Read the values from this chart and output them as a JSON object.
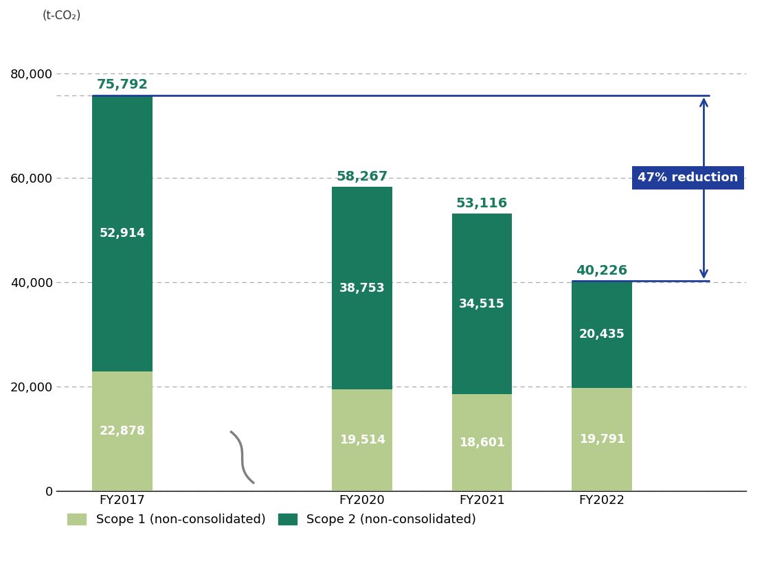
{
  "categories": [
    "FY2017",
    "FY2020",
    "FY2021",
    "FY2022"
  ],
  "scope1": [
    22878,
    19514,
    18601,
    19791
  ],
  "scope2": [
    52914,
    38753,
    34515,
    20435
  ],
  "totals": [
    75792,
    58267,
    53116,
    40226
  ],
  "scope1_color": "#b5cc8e",
  "scope2_color": "#1a7a5e",
  "top_unit_label": "(t-CO₂)",
  "ylim": [
    0,
    88000
  ],
  "yticks": [
    0,
    20000,
    40000,
    60000,
    80000
  ],
  "ytick_labels": [
    "0",
    "20,000",
    "40,000",
    "60,000",
    "80,000"
  ],
  "reference_line_y": 75792,
  "target_line_y": 40226,
  "reduction_label": "47% reduction",
  "reduction_box_color": "#1f3d99",
  "arrow_color": "#1f3d99",
  "dashed_line_color": "#aaaaaa",
  "top_label_color": "#1a7a5e",
  "legend_scope1": "Scope 1 (non-consolidated)",
  "legend_scope2": "Scope 2 (non-consolidated)",
  "bar_width": 0.5,
  "background_color": "#ffffff"
}
